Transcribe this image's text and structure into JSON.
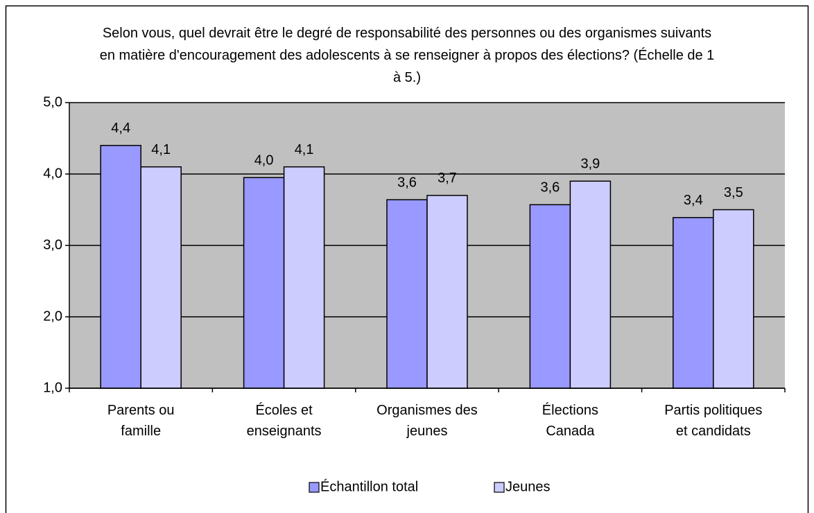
{
  "chart_data": {
    "type": "bar",
    "title": "Selon vous, quel devrait être le degré de responsabilité des personnes ou des organismes suivants en matière d'encouragement des adolescents à se renseigner à propos des élections? (Échelle de 1 à 5.)",
    "categories": [
      "Parents ou\nfamille",
      "Écoles et\nenseignants",
      "Organismes des\njeunes",
      "Élections\nCanada",
      "Partis politiques\net candidats"
    ],
    "series": [
      {
        "name": "Échantillon total",
        "color": "#9999ff",
        "values": [
          4.4,
          3.95,
          3.64,
          3.57,
          3.39
        ],
        "value_labels": [
          "4,4",
          "4,0",
          "3,6",
          "3,6",
          "3,4"
        ]
      },
      {
        "name": "Jeunes",
        "color": "#ccccff",
        "values": [
          4.1,
          4.1,
          3.7,
          3.9,
          3.5
        ],
        "value_labels": [
          "4,1",
          "4,1",
          "3,7",
          "3,9",
          "3,5"
        ]
      }
    ],
    "ylim": [
      1,
      5
    ],
    "yticks": [
      {
        "value": 1,
        "label": "1,0"
      },
      {
        "value": 2,
        "label": "2,0"
      },
      {
        "value": 3,
        "label": "3,0"
      },
      {
        "value": 4,
        "label": "4,0"
      },
      {
        "value": 5,
        "label": "5,0"
      }
    ],
    "grid": true,
    "plot_background": "#c0c0c0",
    "legend": "bottom"
  }
}
